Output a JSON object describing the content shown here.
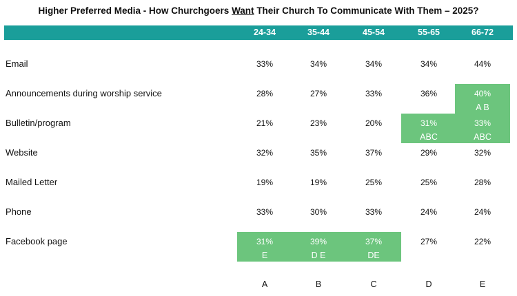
{
  "title": {
    "pre": "Higher Preferred Media  -  How Churchgoers ",
    "emph": "Want",
    "post": " Their Church To Communicate With Them – 2025?"
  },
  "colors": {
    "header": "#1a9e9a",
    "highlight": "#6cc57d"
  },
  "chart_data": {
    "type": "table",
    "columns": [
      "24-34",
      "35-44",
      "45-54",
      "55-65",
      "66-72"
    ],
    "column_letters": [
      "A",
      "B",
      "C",
      "D",
      "E"
    ],
    "rows": [
      {
        "label": "Email",
        "values": [
          "33%",
          "34%",
          "34%",
          "34%",
          "44%"
        ],
        "sig": [
          null,
          null,
          null,
          null,
          null
        ]
      },
      {
        "label": "Announcements during worship service",
        "values": [
          "28%",
          "27%",
          "33%",
          "36%",
          "40%"
        ],
        "sig": [
          null,
          null,
          null,
          null,
          "A B"
        ]
      },
      {
        "label": "Bulletin/program",
        "values": [
          "21%",
          "23%",
          "20%",
          "31%",
          "33%"
        ],
        "sig": [
          null,
          null,
          null,
          "ABC",
          "ABC"
        ]
      },
      {
        "label": "Website",
        "values": [
          "32%",
          "35%",
          "37%",
          "29%",
          "32%"
        ],
        "sig": [
          null,
          null,
          null,
          null,
          null
        ]
      },
      {
        "label": "Mailed Letter",
        "values": [
          "19%",
          "19%",
          "25%",
          "25%",
          "28%"
        ],
        "sig": [
          null,
          null,
          null,
          null,
          null
        ]
      },
      {
        "label": "Phone",
        "values": [
          "33%",
          "30%",
          "33%",
          "24%",
          "24%"
        ],
        "sig": [
          null,
          null,
          null,
          null,
          null
        ]
      },
      {
        "label": "Facebook page",
        "values": [
          "31%",
          "39%",
          "37%",
          "27%",
          "22%"
        ],
        "sig": [
          "E",
          "D E",
          "DE",
          null,
          null
        ]
      }
    ]
  }
}
